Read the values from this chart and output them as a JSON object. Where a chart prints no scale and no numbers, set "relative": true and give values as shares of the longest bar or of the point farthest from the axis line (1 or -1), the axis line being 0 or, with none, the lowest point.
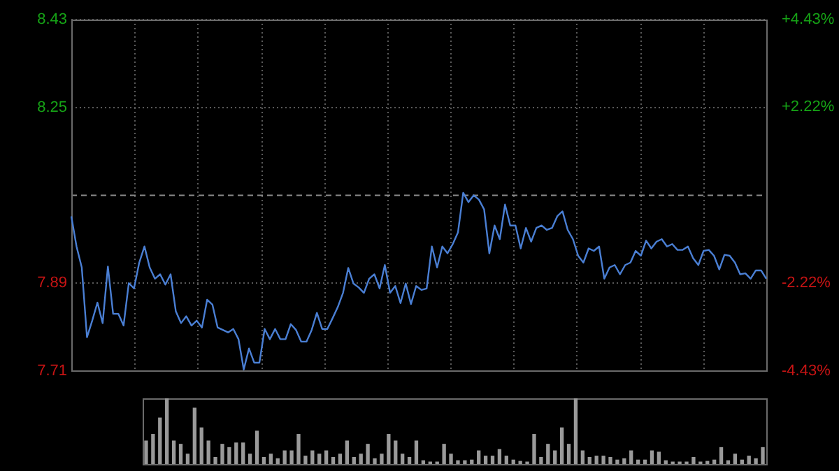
{
  "chart_data": [
    {
      "type": "line",
      "categories": [
        null,
        null,
        null,
        null,
        null,
        null,
        null,
        null,
        null,
        null,
        null,
        null,
        null,
        null,
        null,
        null,
        null,
        null,
        null,
        null,
        null,
        null,
        null,
        null,
        null,
        null,
        null,
        null,
        null,
        null,
        null,
        null,
        null,
        null,
        null,
        null,
        null,
        null,
        null,
        null,
        null,
        null,
        null,
        null,
        null,
        null,
        null,
        null,
        null,
        null,
        null,
        null,
        null,
        null,
        null,
        null,
        null,
        null,
        null,
        null,
        null,
        null,
        null,
        null,
        null,
        null,
        null,
        null,
        null,
        null,
        null,
        null,
        null,
        null,
        null,
        null,
        null,
        null,
        null,
        null,
        null,
        null,
        null,
        null,
        null,
        null,
        null,
        null,
        null,
        null,
        null,
        null,
        null,
        null,
        null,
        null,
        null,
        null,
        null,
        null,
        null,
        null,
        null,
        null,
        null,
        null,
        null,
        null,
        null,
        null,
        null,
        null,
        null,
        null,
        null,
        null,
        null,
        null,
        null,
        null,
        null,
        null,
        null,
        null,
        null,
        null,
        null,
        null,
        null,
        null,
        null,
        null,
        null,
        null
      ],
      "series": [
        {
          "color": "#4a7fd4",
          "values": [
            8.027,
            7.965,
            7.922,
            7.779,
            7.813,
            7.85,
            7.808,
            7.924,
            7.827,
            7.827,
            7.803,
            7.89,
            7.879,
            7.932,
            7.965,
            7.922,
            7.899,
            7.908,
            7.887,
            7.908,
            7.832,
            7.808,
            7.822,
            7.803,
            7.813,
            7.799,
            7.856,
            7.846,
            7.799,
            7.794,
            7.789,
            7.796,
            7.775,
            7.713,
            7.756,
            7.727,
            7.727,
            7.796,
            7.775,
            7.796,
            7.775,
            7.775,
            7.806,
            7.794,
            7.77,
            7.77,
            7.794,
            7.829,
            7.796,
            7.796,
            7.818,
            7.841,
            7.87,
            7.921,
            7.889,
            7.881,
            7.87,
            7.899,
            7.908,
            7.879,
            7.927,
            7.87,
            7.884,
            7.849,
            7.889,
            7.847,
            7.884,
            7.876,
            7.879,
            7.965,
            7.922,
            7.965,
            7.951,
            7.97,
            7.994,
            8.075,
            8.056,
            8.07,
            8.061,
            8.041,
            7.951,
            8.008,
            7.98,
            8.051,
            8.008,
            8.008,
            7.961,
            8.003,
            7.975,
            8.003,
            8.008,
            7.999,
            8.003,
            8.027,
            8.037,
            7.999,
            7.98,
            7.946,
            7.932,
            7.961,
            7.956,
            7.965,
            7.899,
            7.922,
            7.927,
            7.908,
            7.927,
            7.932,
            7.956,
            7.946,
            7.977,
            7.961,
            7.975,
            7.98,
            7.965,
            7.97,
            7.958,
            7.958,
            7.965,
            7.941,
            7.927,
            7.956,
            7.958,
            7.946,
            7.918,
            7.948,
            7.946,
            7.932,
            7.908,
            7.91,
            7.899,
            7.916,
            7.916,
            7.899
          ]
        }
      ],
      "ylim": [
        7.71,
        8.43
      ],
      "yticks": [
        7.71,
        7.89,
        8.25,
        8.43
      ],
      "y2lim": [
        -4.43,
        4.43
      ],
      "y2ticks": [
        {
          "value": -4.43,
          "label": "-4.43%"
        },
        {
          "value": -2.22,
          "label": "-2.22%"
        },
        {
          "value": 2.22,
          "label": "+2.22%"
        },
        {
          "value": 4.43,
          "label": "+4.43%"
        }
      ],
      "ref_lines": [
        {
          "axis": "y",
          "value": 8.07,
          "color": "#8c8c8c",
          "line_style": "dashed"
        }
      ],
      "grid": true,
      "legend": false,
      "tick_labels": "y",
      "marker": "none",
      "line_style": "solid"
    },
    {
      "type": "bar",
      "relative": true,
      "tick_labels": false,
      "legend": false,
      "color": "#9a9a9a",
      "categories": [
        null,
        null,
        null,
        null,
        null,
        null,
        null,
        null,
        null,
        null,
        null,
        null,
        null,
        null,
        null,
        null,
        null,
        null,
        null,
        null,
        null,
        null,
        null,
        null,
        null,
        null,
        null,
        null,
        null,
        null,
        null,
        null,
        null,
        null,
        null,
        null,
        null,
        null,
        null,
        null,
        null,
        null,
        null,
        null,
        null,
        null,
        null,
        null,
        null,
        null,
        null,
        null,
        null,
        null,
        null,
        null,
        null,
        null,
        null,
        null,
        null,
        null,
        null,
        null,
        null,
        null,
        null,
        null,
        null,
        null,
        null,
        null,
        null,
        null,
        null,
        null,
        null,
        null,
        null,
        null,
        null,
        null,
        null,
        null,
        null,
        null,
        null,
        null,
        null,
        null
      ],
      "values": [
        0.35,
        0.45,
        0.7,
        1.0,
        0.35,
        0.3,
        0.15,
        0.85,
        0.55,
        0.35,
        0.1,
        0.3,
        0.25,
        0.32,
        0.32,
        0.15,
        0.5,
        0.1,
        0.15,
        0.08,
        0.2,
        0.2,
        0.45,
        0.12,
        0.2,
        0.15,
        0.2,
        0.1,
        0.15,
        0.35,
        0.1,
        0.15,
        0.3,
        0.08,
        0.15,
        0.45,
        0.35,
        0.15,
        0.1,
        0.35,
        0.05,
        0.03,
        0.03,
        0.3,
        0.15,
        0.05,
        0.05,
        0.06,
        0.2,
        0.12,
        0.12,
        0.22,
        0.12,
        0.06,
        0.04,
        0.03,
        0.45,
        0.1,
        0.3,
        0.2,
        0.55,
        0.3,
        1.0,
        0.2,
        0.1,
        0.12,
        0.12,
        0.1,
        0.06,
        0.08,
        0.2,
        0.06,
        0.06,
        0.2,
        0.18,
        0.05,
        0.03,
        0.03,
        0.03,
        0.1,
        0.03,
        0.04,
        0.06,
        0.25,
        0.05,
        0.15,
        0.06,
        0.12,
        0.08,
        0.25
      ]
    }
  ]
}
